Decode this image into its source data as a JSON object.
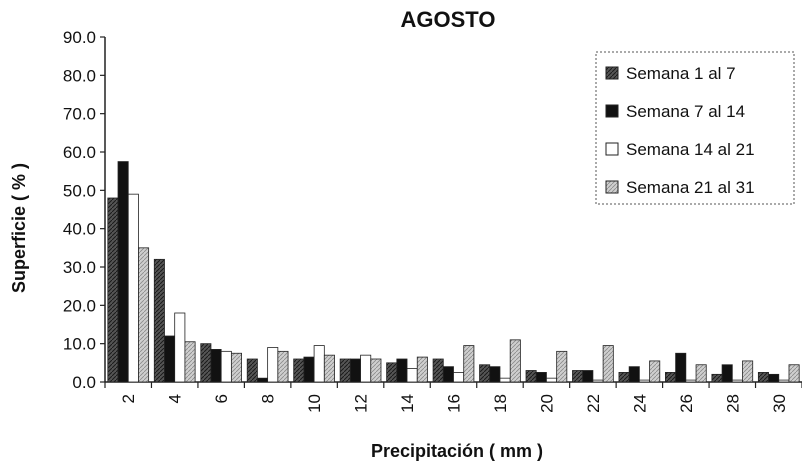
{
  "chart_data": {
    "type": "bar",
    "title": "AGOSTO",
    "xlabel": "Precipitación ( mm )",
    "ylabel": "Superficie ( % )",
    "ylim": [
      0,
      90
    ],
    "y_ticks": [
      "0.0",
      "10.0",
      "20.0",
      "30.0",
      "40.0",
      "50.0",
      "60.0",
      "70.0",
      "80.0",
      "90.0"
    ],
    "categories": [
      "2",
      "4",
      "6",
      "8",
      "10",
      "12",
      "14",
      "16",
      "18",
      "20",
      "22",
      "24",
      "26",
      "28",
      "30"
    ],
    "legend_position": "top-right",
    "grid": false,
    "series": [
      {
        "name": "Semana 1 al 7",
        "style": "dark-hatch",
        "values": [
          48.0,
          32.0,
          10.0,
          6.0,
          6.0,
          6.0,
          5.0,
          6.0,
          4.5,
          3.0,
          3.0,
          2.5,
          2.5,
          2.0,
          2.5
        ]
      },
      {
        "name": "Semana 7 al 14",
        "style": "black",
        "values": [
          57.5,
          12.0,
          8.5,
          1.0,
          6.5,
          6.0,
          6.0,
          4.0,
          4.0,
          2.5,
          3.0,
          4.0,
          7.5,
          4.5,
          2.0
        ]
      },
      {
        "name": "Semana 14 al 21",
        "style": "white",
        "values": [
          49.0,
          18.0,
          8.0,
          9.0,
          9.5,
          7.0,
          3.5,
          2.5,
          1.0,
          1.0,
          0.5,
          0.5,
          0.5,
          0.5,
          0.5
        ]
      },
      {
        "name": "Semana 21 al 31",
        "style": "light-hatch",
        "values": [
          35.0,
          10.5,
          7.5,
          8.0,
          7.0,
          6.0,
          6.5,
          9.5,
          11.0,
          8.0,
          9.5,
          5.5,
          4.5,
          5.5,
          4.5
        ]
      }
    ]
  }
}
